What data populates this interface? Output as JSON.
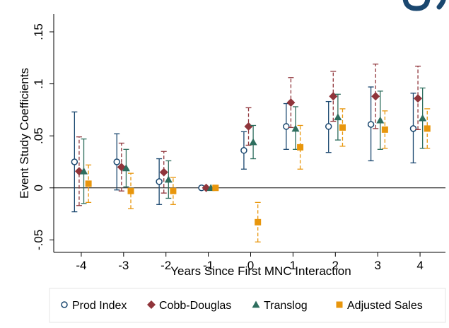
{
  "chart_data": {
    "type": "scatter",
    "title": "",
    "xlabel": "Years Since First MNC Interaction",
    "ylabel": "Event Study Coefficients",
    "x": [
      -4,
      -3,
      -2,
      -1,
      0,
      1,
      2,
      3,
      4
    ],
    "x_ticks": [
      "-4",
      "-3",
      "-2",
      "-1",
      "0",
      "1",
      "2",
      "3",
      "4"
    ],
    "y_ticks": [
      "-.05",
      "0",
      ".05",
      ".1",
      ".15"
    ],
    "y_tick_values": [
      -0.05,
      0,
      0.05,
      0.1,
      0.15
    ],
    "xlim": [
      -4.65,
      4.6
    ],
    "ylim": [
      -0.062,
      0.167
    ],
    "reference_line": 0,
    "grid": false,
    "legend_position": "bottom",
    "series": [
      {
        "name": "Prod Index",
        "marker": "hollow-circle",
        "color": "#1a476f",
        "whisker_style": "solid",
        "values": [
          0.025,
          0.025,
          0.006,
          0.0,
          0.036,
          0.059,
          0.059,
          0.061,
          0.057
        ],
        "ci_low": [
          -0.023,
          -0.002,
          -0.016,
          0.0,
          0.018,
          0.037,
          0.034,
          0.026,
          0.024
        ],
        "ci_high": [
          0.073,
          0.052,
          0.028,
          0.0,
          0.054,
          0.081,
          0.083,
          0.097,
          0.091
        ]
      },
      {
        "name": "Cobb-Douglas",
        "marker": "diamond",
        "color": "#90353b",
        "whisker_style": "dashed",
        "values": [
          0.016,
          0.02,
          0.015,
          0.0,
          0.059,
          0.082,
          0.088,
          0.088,
          0.086
        ],
        "ci_low": [
          -0.017,
          -0.003,
          -0.005,
          0.0,
          0.041,
          0.058,
          0.064,
          0.057,
          0.056
        ],
        "ci_high": [
          0.049,
          0.043,
          0.035,
          0.0,
          0.077,
          0.106,
          0.112,
          0.119,
          0.117
        ]
      },
      {
        "name": "Translog",
        "marker": "triangle",
        "color": "#2e6e5e",
        "whisker_style": "solid",
        "values": [
          0.016,
          0.019,
          0.008,
          0.0,
          0.044,
          0.057,
          0.068,
          0.065,
          0.067
        ],
        "ci_low": [
          -0.015,
          0.001,
          -0.01,
          0.0,
          0.028,
          0.037,
          0.046,
          0.037,
          0.038
        ],
        "ci_high": [
          0.047,
          0.037,
          0.026,
          0.0,
          0.06,
          0.078,
          0.09,
          0.093,
          0.096
        ]
      },
      {
        "name": "Adjusted Sales",
        "marker": "square",
        "color": "#e8960c",
        "whisker_style": "dashed",
        "values": [
          0.004,
          -0.003,
          -0.003,
          0.0,
          -0.033,
          0.039,
          0.058,
          0.056,
          0.057
        ],
        "ci_low": [
          -0.014,
          -0.02,
          -0.016,
          0.0,
          -0.052,
          0.018,
          0.04,
          0.038,
          0.038
        ],
        "ci_high": [
          0.022,
          0.014,
          0.01,
          0.0,
          -0.014,
          0.06,
          0.076,
          0.074,
          0.076
        ]
      }
    ]
  }
}
